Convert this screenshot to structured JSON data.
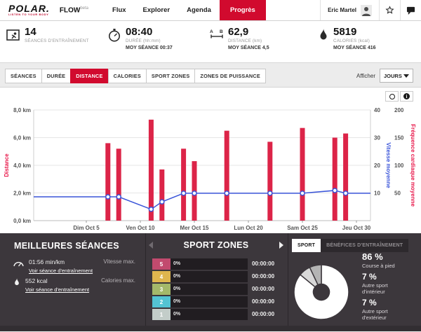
{
  "theme": {
    "accent": "#d10a2e",
    "dark_bg": "#3c373c"
  },
  "header": {
    "logo_text": "POLAR.",
    "logo_tagline": "LISTEN TO YOUR BODY",
    "flow": "FLOW",
    "flow_beta": "beta",
    "nav": [
      {
        "label": "Flux"
      },
      {
        "label": "Explorer"
      },
      {
        "label": "Agenda"
      },
      {
        "label": "Progrès",
        "active": true
      }
    ],
    "user": "Eric Martel"
  },
  "stats": [
    {
      "icon": "training-sessions-icon",
      "value": "14",
      "label": "SÉANCES D'ENTRAÎNEMENT",
      "avg": ""
    },
    {
      "icon": "stopwatch-icon",
      "value": "08:40",
      "label": "DURÉE (hh:mm)",
      "avg": "MOY SÉANCE 00:37"
    },
    {
      "icon": "distance-icon",
      "value": "62,9",
      "label": "DISTANCE (km)",
      "avg": "MOY SÉANCE 4,5"
    },
    {
      "icon": "calories-icon",
      "value": "5819",
      "label": "CALORIES (kcal)",
      "avg": "MOY SÉANCE 416"
    }
  ],
  "metric_tabs": [
    {
      "label": "SÉANCES"
    },
    {
      "label": "DURÉE"
    },
    {
      "label": "DISTANCE",
      "active": true
    },
    {
      "label": "CALORIES"
    },
    {
      "label": "SPORT ZONES"
    },
    {
      "label": "ZONES DE PUISSANCE"
    }
  ],
  "display": {
    "label": "Afficher",
    "value": "JOURS"
  },
  "chart_data": {
    "type": "bar+line",
    "x_axis": {
      "ticks": [
        {
          "label": "Dim Oct 5",
          "day": 5
        },
        {
          "label": "Ven Oct 10",
          "day": 10
        },
        {
          "label": "Mer Oct 15",
          "day": 15
        },
        {
          "label": "Lun Oct 20",
          "day": 20
        },
        {
          "label": "Sam Oct 25",
          "day": 25
        },
        {
          "label": "Jeu Oct 30",
          "day": 30
        }
      ]
    },
    "y_left": {
      "label": "Distance",
      "color": "#e8194b",
      "max": 8,
      "ticks": [
        {
          "label": "0,0 km",
          "v": 0
        },
        {
          "label": "2,0 km",
          "v": 2
        },
        {
          "label": "4,0 km",
          "v": 4
        },
        {
          "label": "6,0 km",
          "v": 6
        },
        {
          "label": "8,0 km",
          "v": 8
        }
      ]
    },
    "y_right_speed": {
      "label": "Vitesse moyenne",
      "color": "#3a55d9",
      "max": 40,
      "ticks": [
        10,
        20,
        30,
        40
      ]
    },
    "y_right_hr": {
      "label": "Fréquence cardiaque moyenne",
      "color": "#e8194b",
      "max": 200,
      "ticks": [
        50,
        100,
        150,
        200
      ]
    },
    "bars": {
      "name": "Distance (km)",
      "color": "#dc2448",
      "points": [
        {
          "day": 7,
          "value": 5.6
        },
        {
          "day": 8,
          "value": 5.2
        },
        {
          "day": 11,
          "value": 7.3
        },
        {
          "day": 12,
          "value": 3.7
        },
        {
          "day": 14,
          "value": 5.2
        },
        {
          "day": 15,
          "value": 4.3
        },
        {
          "day": 18,
          "value": 6.5
        },
        {
          "day": 22,
          "value": 5.7
        },
        {
          "day": 25,
          "value": 6.7
        },
        {
          "day": 28,
          "value": 6.0
        },
        {
          "day": 29,
          "value": 6.3
        }
      ]
    },
    "line": {
      "name": "Vitesse moyenne (km/h)",
      "color": "#3a55d9",
      "edge_start": 8.6,
      "edge_end": 9.9,
      "points": [
        {
          "day": 7,
          "value": 8.6
        },
        {
          "day": 8,
          "value": 8.6
        },
        {
          "day": 11,
          "value": 4.1
        },
        {
          "day": 12,
          "value": 6.8
        },
        {
          "day": 14,
          "value": 9.9
        },
        {
          "day": 15,
          "value": 9.9
        },
        {
          "day": 18,
          "value": 9.9
        },
        {
          "day": 22,
          "value": 9.9
        },
        {
          "day": 25,
          "value": 9.9
        },
        {
          "day": 28,
          "value": 10.9
        },
        {
          "day": 29,
          "value": 9.9
        }
      ]
    }
  },
  "best_sessions": {
    "title": "MEILLEURES SÉANCES",
    "rows": [
      {
        "icon": "speedometer-icon",
        "value": "01:56 min/km",
        "link": "Voir séance d'entraînement",
        "max_label": "Vitesse max."
      },
      {
        "icon": "flame-icon",
        "value": "552 kcal",
        "link": "Voir séance d'entraînement",
        "max_label": "Calories max."
      }
    ]
  },
  "sport_zones": {
    "title": "SPORT ZONES",
    "rows": [
      {
        "num": "5",
        "pct": "0%",
        "time": "00:00:00",
        "color": "#c24a6e"
      },
      {
        "num": "4",
        "pct": "0%",
        "time": "00:00:00",
        "color": "#dfb64e"
      },
      {
        "num": "3",
        "pct": "0%",
        "time": "00:00:00",
        "color": "#a4b86a"
      },
      {
        "num": "2",
        "pct": "0%",
        "time": "00:00:00",
        "color": "#53c3d3"
      },
      {
        "num": "1",
        "pct": "0%",
        "time": "00:00:00",
        "color": "#c3cdc9"
      }
    ]
  },
  "sport_panel": {
    "tabs": [
      {
        "label": "SPORT",
        "active": true
      },
      {
        "label": "BÉNÉFICES D'ENTRAÎNEMENT"
      }
    ],
    "donut": [
      {
        "name": "Course à pied",
        "pct": 86,
        "color": "#ffffff"
      },
      {
        "name": "Autre sport d'intérieur",
        "pct": 7,
        "color": "#d8d8d8"
      },
      {
        "name": "Autre sport d'extérieur",
        "pct": 7,
        "color": "#b4b4b4"
      }
    ],
    "legend": [
      {
        "pct": "86 %",
        "line1": "Course à pied",
        "line2": ""
      },
      {
        "pct": "7 %",
        "line1": "Autre sport",
        "line2": "d'intérieur"
      },
      {
        "pct": "7 %",
        "line1": "Autre sport",
        "line2": "d'extérieur"
      }
    ]
  }
}
